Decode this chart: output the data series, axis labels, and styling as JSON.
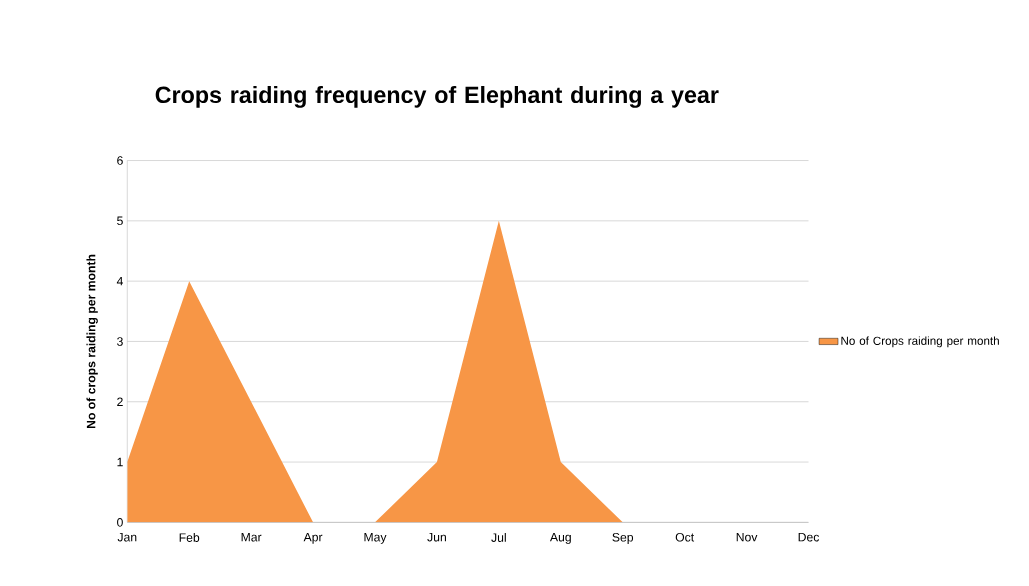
{
  "chart_data": {
    "type": "area",
    "title": "Crops raiding frequency of Elephant during a year",
    "ylabel": "No of crops raiding per month",
    "categories": [
      "Jan",
      "Feb",
      "Mar",
      "Apr",
      "May",
      "Jun",
      "Jul",
      "Aug",
      "Sep",
      "Oct",
      "Nov",
      "Dec"
    ],
    "series": [
      {
        "name": "No of Crops raiding per month",
        "color": "#f79646",
        "values": [
          1,
          4,
          2,
          0,
          0,
          1,
          5,
          1,
          0,
          0,
          0,
          0
        ]
      }
    ],
    "ylim": [
      0,
      6
    ],
    "yticks": [
      0,
      1,
      2,
      3,
      4,
      5,
      6
    ],
    "grid": "y",
    "legend": "right"
  }
}
